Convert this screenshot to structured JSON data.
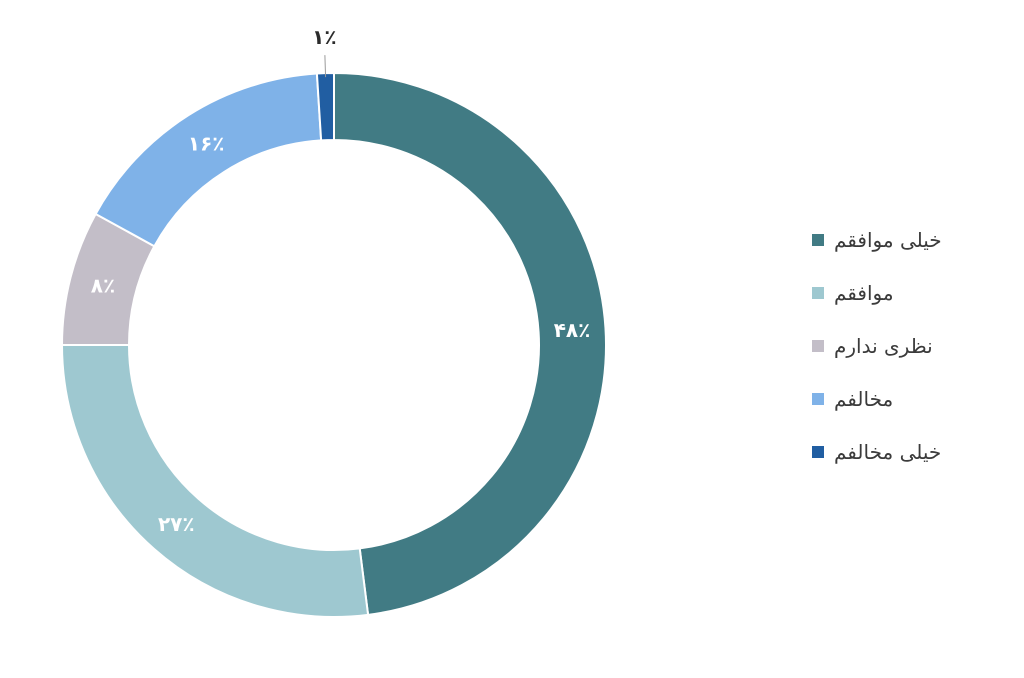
{
  "chart_data": {
    "type": "pie",
    "donut": true,
    "title": "",
    "slices": [
      {
        "label": "خیلی موافقم",
        "value": 48,
        "display": "۴۸٪",
        "color": "#417b84",
        "label_color": "#ffffff"
      },
      {
        "label": "موافقم",
        "value": 27,
        "display": "۲۷٪",
        "color": "#9ec8d0",
        "label_color": "#ffffff"
      },
      {
        "label": "نظری ندارم",
        "value": 8,
        "display": "۸٪",
        "color": "#c3bec8",
        "label_color": "#ffffff"
      },
      {
        "label": "مخالفم",
        "value": 16,
        "display": "۱۶٪",
        "color": "#7fb2e8",
        "label_color": "#ffffff"
      },
      {
        "label": "خیلی مخالفم",
        "value": 1,
        "display": "۱٪",
        "color": "#215ea2",
        "label_color": "#2b2b2b"
      }
    ],
    "start": "top",
    "direction": "clockwise",
    "legend_position": "right"
  }
}
